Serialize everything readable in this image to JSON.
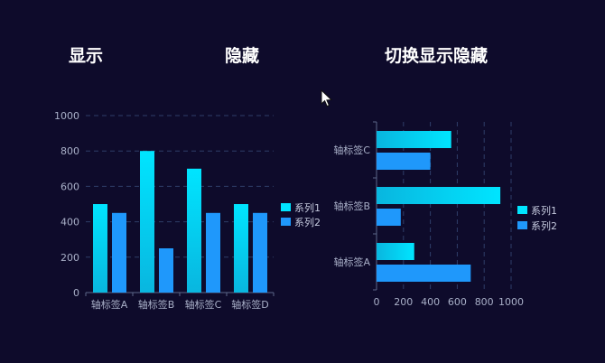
{
  "buttons": {
    "show": "显示",
    "hide": "隐藏",
    "toggle": "切换显示隐藏"
  },
  "colors": {
    "background": "#0e0b2b",
    "series1_top": "#00e5ff",
    "series1_bottom": "#09b6df",
    "series2": "#1f98fb",
    "grid": "#2f3e68",
    "axis": "#5c6789",
    "tick": "#a9b0c8"
  },
  "chart_data": [
    {
      "type": "bar",
      "orientation": "vertical",
      "categories": [
        "轴标签A",
        "轴标签B",
        "轴标签C",
        "轴标签D"
      ],
      "series": [
        {
          "name": "系列1",
          "values": [
            500,
            800,
            700,
            500
          ]
        },
        {
          "name": "系列2",
          "values": [
            450,
            250,
            450,
            450
          ]
        }
      ],
      "yticks": [
        "0",
        "200",
        "400",
        "600",
        "800",
        "1000"
      ],
      "ylim": [
        0,
        1000
      ],
      "grid": "horizontal-dashed",
      "legend": "right"
    },
    {
      "type": "bar",
      "orientation": "horizontal",
      "categories": [
        "轴标签A",
        "轴标签B",
        "轴标签C"
      ],
      "series": [
        {
          "name": "系列1",
          "values": [
            280,
            920,
            555
          ]
        },
        {
          "name": "系列2",
          "values": [
            700,
            180,
            400
          ]
        }
      ],
      "xticks": [
        "0",
        "200",
        "400",
        "600",
        "800",
        "1000"
      ],
      "xlim": [
        0,
        1000
      ],
      "grid": "vertical-dashed",
      "legend": "right"
    }
  ]
}
